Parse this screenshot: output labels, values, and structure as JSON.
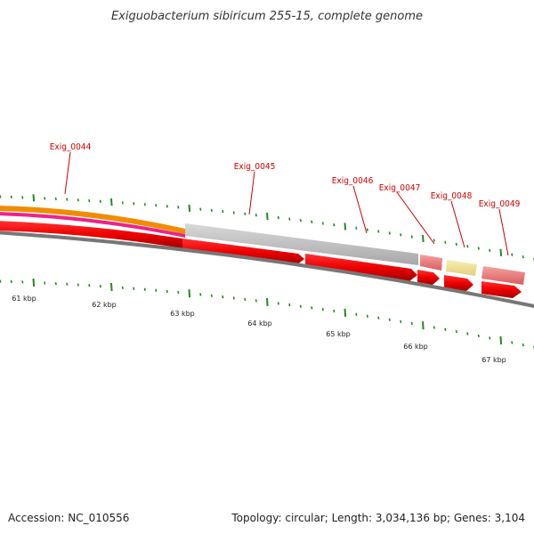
{
  "title": "Exiguobacterium sibiricum 255-15, complete genome",
  "genes": [
    {
      "label": "Exig_0044"
    },
    {
      "label": "Exig_0045"
    },
    {
      "label": "Exig_0046"
    },
    {
      "label": "Exig_0047"
    },
    {
      "label": "Exig_0048"
    },
    {
      "label": "Exig_0049"
    }
  ],
  "scale_labels": [
    "61 kbp",
    "62 kbp",
    "63 kbp",
    "64 kbp",
    "65 kbp",
    "66 kbp",
    "67 kbp"
  ],
  "footer": {
    "accession": "Accession: NC_010556",
    "topology": "Topology: circular; Length: 3,034,136 bp; Genes: 3,104"
  },
  "colors": {
    "gene_label": "#cc0000",
    "tick": "#228822",
    "cds_forward": "#ff0000",
    "orange_band": "#f08c00",
    "magenta_band": "#ee2288",
    "gray_band": "#c4c4c4",
    "pink_block": "#f07878",
    "yellow_block": "#f4e49c",
    "backbone": "#777777"
  }
}
